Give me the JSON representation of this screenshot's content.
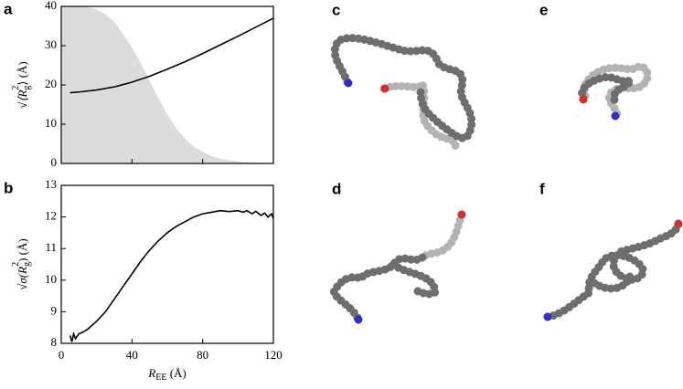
{
  "chart_data": [
    {
      "type": "line",
      "panel_label": "a",
      "ylabel": {
        "main": "√⟨R",
        "sub": "g",
        "sup": "2",
        "end": "⟩ (Å)"
      },
      "xlim": [
        0,
        120
      ],
      "xticks": [
        0,
        40,
        80,
        120
      ],
      "ylim": [
        0,
        40
      ],
      "yticks": [
        0,
        10,
        20,
        30,
        40
      ],
      "series": [
        {
          "kind": "area",
          "color": "#dcdcdc",
          "x": [
            0,
            10,
            15,
            20,
            25,
            30,
            35,
            40,
            45,
            50,
            55,
            60,
            65,
            70,
            75,
            80,
            85,
            90,
            95,
            100,
            110,
            120
          ],
          "values": [
            40,
            40,
            39.8,
            39.2,
            38,
            36,
            33,
            29.5,
            25.5,
            21,
            16.5,
            12.5,
            9,
            6.3,
            4.3,
            2.9,
            1.9,
            1.2,
            0.8,
            0.5,
            0.2,
            0.1
          ]
        },
        {
          "kind": "line",
          "color": "#000000",
          "x": [
            5,
            10,
            20,
            30,
            40,
            50,
            60,
            70,
            80,
            90,
            100,
            110,
            120
          ],
          "values": [
            18,
            18.2,
            18.7,
            19.5,
            20.7,
            22.2,
            24,
            25.9,
            28,
            30.2,
            32.4,
            34.7,
            37
          ]
        }
      ]
    },
    {
      "type": "line",
      "panel_label": "b",
      "ylabel": {
        "main": "√σ(R",
        "sub": "g",
        "sup": "2",
        "end": ") (Å)"
      },
      "xlabel": {
        "main": "R",
        "sub": "EE",
        "end": " (Å)"
      },
      "xlim": [
        0,
        120
      ],
      "xticks": [
        0,
        40,
        80,
        120
      ],
      "ylim": [
        8,
        13
      ],
      "yticks": [
        8,
        9,
        10,
        11,
        12,
        13
      ],
      "series": [
        {
          "kind": "line",
          "color": "#000000",
          "x": [
            5,
            6,
            7,
            8,
            10,
            12,
            15,
            20,
            25,
            30,
            35,
            40,
            45,
            50,
            55,
            60,
            65,
            70,
            75,
            80,
            85,
            90,
            95,
            100,
            103,
            105,
            108,
            110,
            113,
            115,
            117,
            119,
            120
          ],
          "values": [
            8.25,
            8.05,
            8.3,
            8.15,
            8.3,
            8.35,
            8.45,
            8.7,
            9.0,
            9.4,
            9.8,
            10.2,
            10.6,
            10.95,
            11.25,
            11.5,
            11.7,
            11.85,
            12.0,
            12.1,
            12.15,
            12.2,
            12.17,
            12.2,
            12.15,
            12.2,
            12.1,
            12.18,
            12.05,
            12.12,
            12.0,
            12.1,
            11.95
          ]
        }
      ]
    }
  ],
  "structure_labels": [
    "c",
    "d",
    "e",
    "f"
  ]
}
